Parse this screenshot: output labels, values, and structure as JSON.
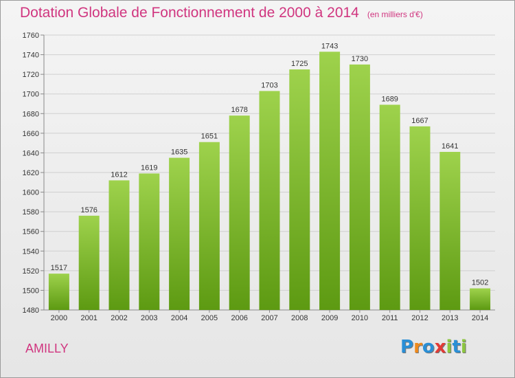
{
  "title": "Dotation Globale de Fonctionnement de 2000 à 2014",
  "subtitle": "(en milliers d'€)",
  "commune": "AMILLY",
  "logo": {
    "text": "Proxiti",
    "letters": [
      {
        "ch": "P",
        "color": "#2a8fd6"
      },
      {
        "ch": "r",
        "color": "#f08a1c"
      },
      {
        "ch": "o",
        "color": "#2a8fd6"
      },
      {
        "ch": "x",
        "color": "#e23b36"
      },
      {
        "ch": "i",
        "color": "#8dc63f"
      },
      {
        "ch": "t",
        "color": "#2a8fd6"
      },
      {
        "ch": "i",
        "color": "#8dc63f"
      }
    ]
  },
  "colors": {
    "bar_top": "#9ed24c",
    "bar_bottom": "#5d9a12",
    "title": "#d0357f",
    "axis_text": "#333333",
    "grid": "#cfcfcf"
  },
  "chart_data": {
    "type": "bar",
    "categories": [
      "2000",
      "2001",
      "2002",
      "2003",
      "2004",
      "2005",
      "2006",
      "2007",
      "2008",
      "2009",
      "2010",
      "2011",
      "2012",
      "2013",
      "2014"
    ],
    "values": [
      1517,
      1576,
      1612,
      1619,
      1635,
      1651,
      1678,
      1703,
      1725,
      1743,
      1730,
      1689,
      1667,
      1641,
      1502
    ],
    "ylim": [
      1480,
      1760
    ],
    "yticks": [
      1480,
      1500,
      1520,
      1540,
      1560,
      1580,
      1600,
      1620,
      1640,
      1660,
      1680,
      1700,
      1720,
      1740,
      1760
    ],
    "grid": true,
    "data_labels": true
  }
}
